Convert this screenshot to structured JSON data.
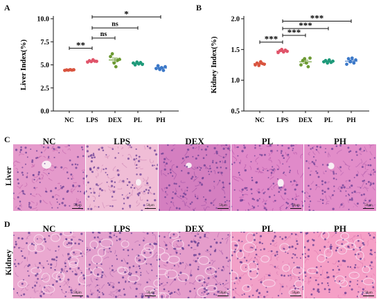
{
  "panels": {
    "A": "A",
    "B": "B",
    "C": "C",
    "D": "D"
  },
  "chart_data": [
    {
      "type": "scatter",
      "ylabel": "Liver Index(%)",
      "xlabel": "",
      "categories": [
        "NC",
        "LPS",
        "DEX",
        "PL",
        "PH"
      ],
      "ylim": [
        0.0,
        10.0
      ],
      "yticks": [
        "0.0",
        "2.5",
        "5.0",
        "7.5",
        "10.0"
      ],
      "ytick_values": [
        0.0,
        2.5,
        5.0,
        7.5,
        10.0
      ],
      "colors": [
        "#d9543f",
        "#e0546a",
        "#6c9a33",
        "#1f9a7a",
        "#3b78c8"
      ],
      "points": [
        [
          4.4,
          4.45,
          4.42,
          4.48,
          4.43,
          4.47
        ],
        [
          5.3,
          5.45,
          5.35,
          5.55,
          5.4,
          5.38
        ],
        [
          5.9,
          6.2,
          5.2,
          4.8,
          5.5,
          5.6
        ],
        [
          5.2,
          5.0,
          5.3,
          5.1,
          5.25,
          5.05
        ],
        [
          4.6,
          4.9,
          4.5,
          4.7,
          4.4,
          4.8
        ]
      ],
      "means": [
        4.44,
        5.41,
        5.53,
        5.15,
        4.65
      ],
      "sems": [
        0.02,
        0.05,
        0.2,
        0.05,
        0.08
      ],
      "significance": [
        {
          "from": 0,
          "to": 1,
          "label": "**",
          "y": 6.8
        },
        {
          "from": 1,
          "to": 2,
          "label": "ns",
          "y": 7.9
        },
        {
          "from": 1,
          "to": 3,
          "label": "ns",
          "y": 9.0
        },
        {
          "from": 1,
          "to": 4,
          "label": "*",
          "y": 10.2
        }
      ]
    },
    {
      "type": "scatter",
      "ylabel": "Kidney Index(%)",
      "xlabel": "",
      "categories": [
        "NC",
        "LPS",
        "DEX",
        "PL",
        "PH"
      ],
      "ylim": [
        0.5,
        2.0
      ],
      "yticks": [
        "0.5",
        "1.0",
        "1.5",
        "2.0"
      ],
      "ytick_values": [
        0.5,
        1.0,
        1.5,
        2.0
      ],
      "colors": [
        "#d9543f",
        "#e0546a",
        "#6c9a33",
        "#1f9a7a",
        "#3b78c8"
      ],
      "points": [
        [
          1.25,
          1.28,
          1.24,
          1.3,
          1.27,
          1.26
        ],
        [
          1.45,
          1.48,
          1.5,
          1.46,
          1.49,
          1.47
        ],
        [
          1.25,
          1.32,
          1.35,
          1.28,
          1.22,
          1.36
        ],
        [
          1.3,
          1.32,
          1.28,
          1.33,
          1.29,
          1.31
        ],
        [
          1.26,
          1.35,
          1.3,
          1.36,
          1.28,
          1.33
        ]
      ],
      "means": [
        1.27,
        1.475,
        1.3,
        1.305,
        1.31
      ],
      "sems": [
        0.01,
        0.01,
        0.025,
        0.01,
        0.02
      ],
      "significance": [
        {
          "from": 0,
          "to": 1,
          "label": "***",
          "y": 1.62
        },
        {
          "from": 1,
          "to": 2,
          "label": "***",
          "y": 1.73
        },
        {
          "from": 1,
          "to": 3,
          "label": "***",
          "y": 1.84
        },
        {
          "from": 1,
          "to": 4,
          "label": "***",
          "y": 1.96
        }
      ]
    }
  ],
  "histology": {
    "columns": [
      "NC",
      "LPS",
      "DEX",
      "PL",
      "PH"
    ],
    "liver": {
      "row_label": "Liver",
      "scale_label": "50μm",
      "base_color": "#d98ec0",
      "nuclei_color": "#6a3f94",
      "tiles": [
        {
          "bg": "#e59acb",
          "tint": "#c46aae"
        },
        {
          "bg": "#f0bdd6",
          "tint": "#d08cb8"
        },
        {
          "bg": "#d47fc0",
          "tint": "#a455a6"
        },
        {
          "bg": "#e08ac9",
          "tint": "#b85aad"
        },
        {
          "bg": "#e28dc9",
          "tint": "#b967b0"
        }
      ]
    },
    "kidney": {
      "row_label": "Kidney",
      "scale_label": "50μm",
      "base_color": "#e49ac4",
      "nuclei_color": "#5f3a8f",
      "tiles": [
        {
          "bg": "#eaa8d0",
          "tint": "#c27ab4"
        },
        {
          "bg": "#e4a0cd",
          "tint": "#b56fb0"
        },
        {
          "bg": "#e59dcb",
          "tint": "#b76ab0"
        },
        {
          "bg": "#f2a1c8",
          "tint": "#dd7cb2"
        },
        {
          "bg": "#f59fc6",
          "tint": "#e07cb0"
        }
      ]
    }
  }
}
